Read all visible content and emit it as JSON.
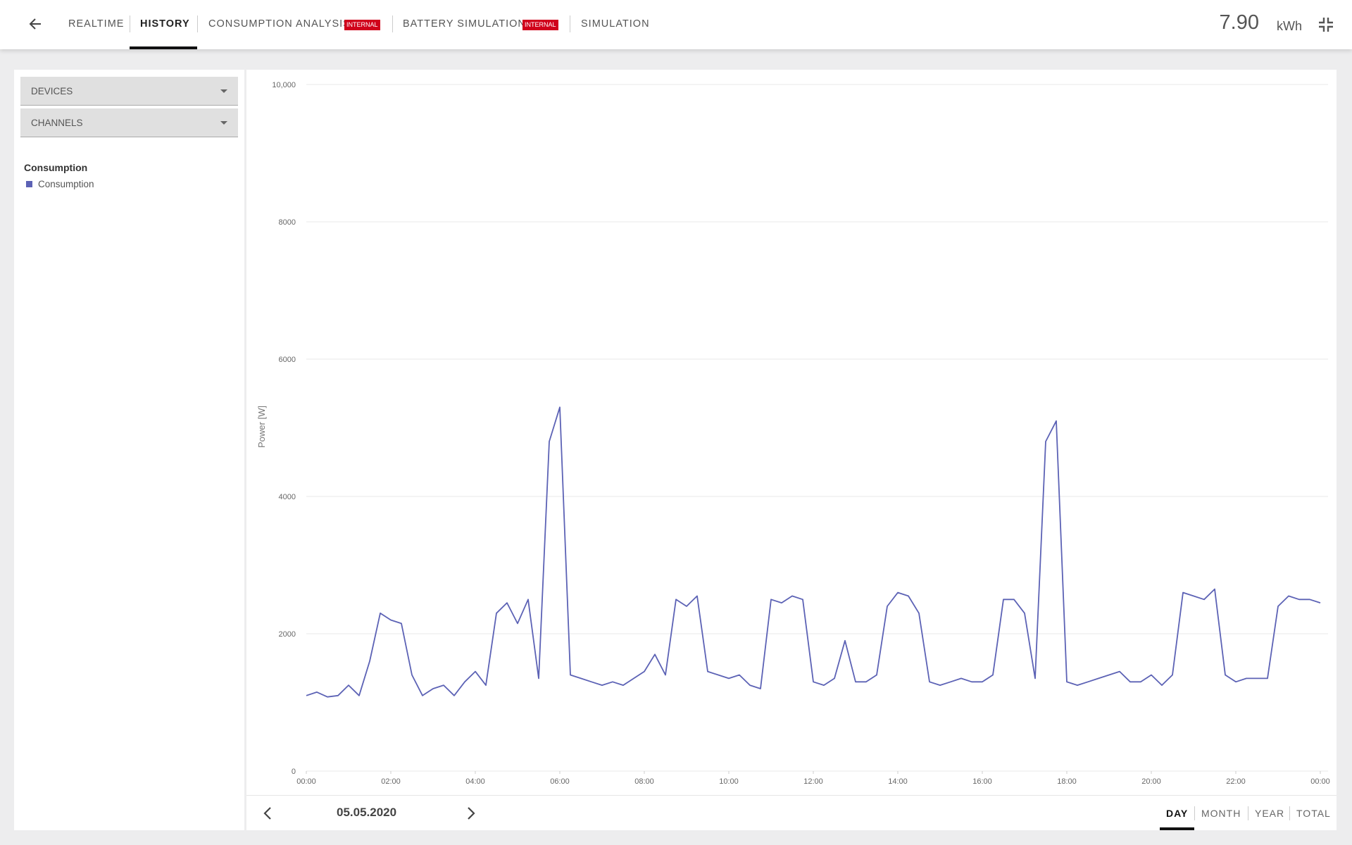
{
  "nav": {
    "tabs": [
      {
        "label": "REALTIME"
      },
      {
        "label": "HISTORY",
        "active": true
      },
      {
        "label": "CONSUMPTION ANALYSIS",
        "badge": "INTERNAL"
      },
      {
        "label": "BATTERY SIMULATION",
        "badge": "INTERNAL"
      },
      {
        "label": "SIMULATION"
      }
    ],
    "total": {
      "value": "7.90",
      "unit": "kWh"
    }
  },
  "sidebar": {
    "dropdowns": [
      "DEVICES",
      "CHANNELS"
    ],
    "legend_title": "Consumption"
  },
  "chart_data": {
    "type": "line",
    "ylabel": "Power [W]",
    "x": [
      0,
      0.25,
      0.5,
      0.75,
      1,
      1.25,
      1.5,
      1.75,
      2,
      2.25,
      2.5,
      2.75,
      3,
      3.25,
      3.5,
      3.75,
      4,
      4.25,
      4.5,
      4.75,
      5,
      5.25,
      5.5,
      5.75,
      6,
      6.25,
      6.5,
      6.75,
      7,
      7.25,
      7.5,
      7.75,
      8,
      8.25,
      8.5,
      8.75,
      9,
      9.25,
      9.5,
      9.75,
      10,
      10.25,
      10.5,
      10.75,
      11,
      11.25,
      11.5,
      11.75,
      12,
      12.25,
      12.5,
      12.75,
      13,
      13.25,
      13.5,
      13.75,
      14,
      14.25,
      14.5,
      14.75,
      15,
      15.25,
      15.5,
      15.75,
      16,
      16.25,
      16.5,
      16.75,
      17,
      17.25,
      17.5,
      17.75,
      18,
      18.25,
      18.5,
      18.75,
      19,
      19.25,
      19.5,
      19.75,
      20,
      20.25,
      20.5,
      20.75,
      21,
      21.25,
      21.5,
      21.75,
      22,
      22.25,
      22.5,
      22.75,
      23,
      23.25,
      23.5,
      23.75,
      24
    ],
    "series": [
      {
        "name": "Consumption",
        "color": "#5c62b5",
        "values": [
          1100,
          1150,
          1080,
          1100,
          1250,
          1100,
          1600,
          2300,
          2200,
          2150,
          1400,
          1100,
          1200,
          1250,
          1100,
          1300,
          1450,
          1250,
          2300,
          2450,
          2150,
          2500,
          1350,
          4800,
          5300,
          1400,
          1350,
          1300,
          1250,
          1300,
          1250,
          1350,
          1450,
          1700,
          1400,
          2500,
          2400,
          2550,
          1450,
          1400,
          1350,
          1400,
          1250,
          1200,
          2500,
          2450,
          2550,
          2500,
          1300,
          1250,
          1350,
          1900,
          1300,
          1300,
          1400,
          2400,
          2600,
          2550,
          2300,
          1300,
          1250,
          1300,
          1350,
          1300,
          1300,
          1400,
          2500,
          2500,
          2300,
          1350,
          4800,
          5100,
          1300,
          1250,
          1300,
          1350,
          1400,
          1450,
          1300,
          1300,
          1400,
          1250,
          1400,
          2600,
          2550,
          2500,
          2650,
          1400,
          1300,
          1350,
          1350,
          1350,
          2400,
          2550,
          2500,
          2500,
          2450
        ]
      }
    ],
    "xlim": [
      0,
      24
    ],
    "xticks": [
      {
        "value": 0,
        "label": "00:00"
      },
      {
        "value": 2,
        "label": "02:00"
      },
      {
        "value": 4,
        "label": "04:00"
      },
      {
        "value": 6,
        "label": "06:00"
      },
      {
        "value": 8,
        "label": "08:00"
      },
      {
        "value": 10,
        "label": "10:00"
      },
      {
        "value": 12,
        "label": "12:00"
      },
      {
        "value": 14,
        "label": "14:00"
      },
      {
        "value": 16,
        "label": "16:00"
      },
      {
        "value": 18,
        "label": "18:00"
      },
      {
        "value": 20,
        "label": "20:00"
      },
      {
        "value": 22,
        "label": "22:00"
      },
      {
        "value": 24,
        "label": "00:00"
      }
    ],
    "ylim": [
      0,
      10000
    ],
    "yticks": [
      0,
      2000,
      4000,
      6000,
      8000,
      {
        "value": 10000,
        "label": "10,000"
      }
    ],
    "grid": true
  },
  "footer": {
    "date": "05.05.2020",
    "ranges": [
      {
        "label": "DAY",
        "active": true
      },
      {
        "label": "MONTH"
      },
      {
        "label": "YEAR"
      },
      {
        "label": "TOTAL"
      }
    ]
  }
}
